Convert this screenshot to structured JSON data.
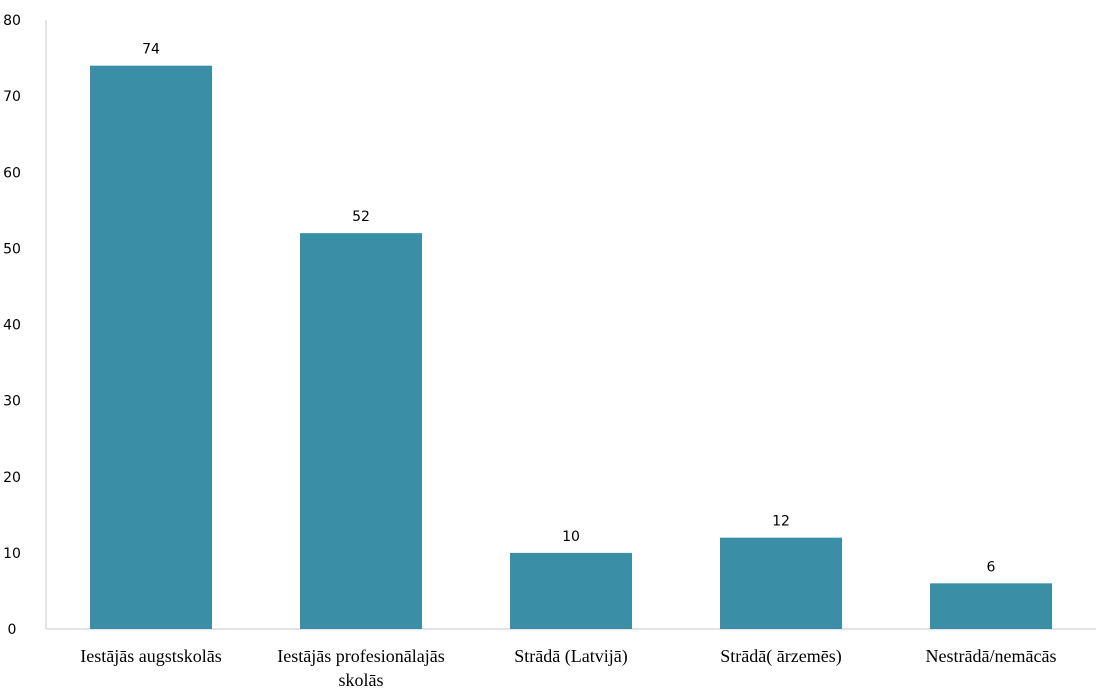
{
  "chart_data": {
    "type": "bar",
    "title": "",
    "xlabel": "",
    "ylabel": "",
    "categories": [
      [
        "Iestājās augstskolās"
      ],
      [
        "Iestājās profesionālajās",
        "skolās"
      ],
      [
        "Strādā (Latvijā)"
      ],
      [
        "Strādā( ārzemēs)"
      ],
      [
        "Nestrādā/nemācās"
      ]
    ],
    "values": [
      74,
      52,
      10,
      12,
      6
    ],
    "ylim": [
      0,
      80
    ],
    "yticks": [
      0,
      10,
      20,
      30,
      40,
      50,
      60,
      70,
      80
    ],
    "grid": false,
    "legend": "none",
    "bar_color": "#3a8fa6",
    "data_labels": true
  }
}
